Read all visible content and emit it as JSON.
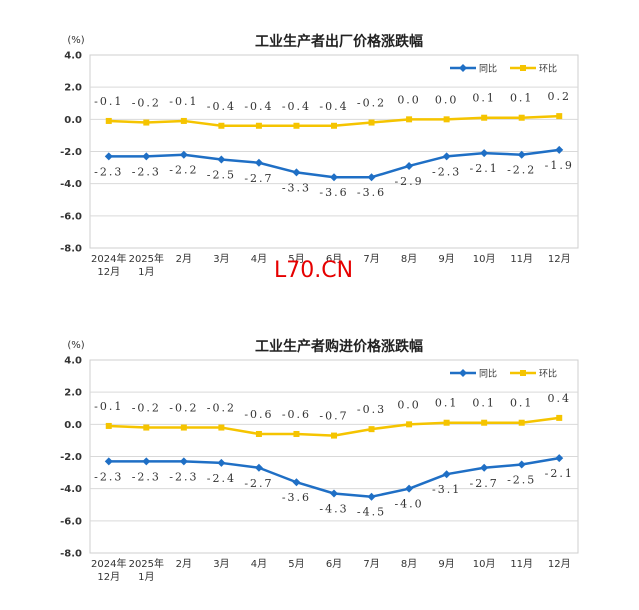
{
  "watermark": "L70.CN",
  "chart_data": [
    {
      "type": "line",
      "title": "工业生产者出厂价格涨跌幅",
      "unit": "(%)",
      "categories": [
        [
          "2024年",
          "12月"
        ],
        [
          "2025年",
          "1月"
        ],
        [
          "2月"
        ],
        [
          "3月"
        ],
        [
          "4月"
        ],
        [
          "5月"
        ],
        [
          "6月"
        ],
        [
          "7月"
        ],
        [
          "8月"
        ],
        [
          "9月"
        ],
        [
          "10月"
        ],
        [
          "11月"
        ],
        [
          "12月"
        ]
      ],
      "ylim": [
        -8.0,
        4.0
      ],
      "yticks": [
        "4.0",
        "2.0",
        "0.0",
        "-2.0",
        "-4.0",
        "-6.0",
        "-8.0"
      ],
      "grid": true,
      "legend": "top-right",
      "series": [
        {
          "name": "同比",
          "color": "#1f6fc5",
          "marker": "diamond",
          "values": [
            -2.3,
            -2.3,
            -2.2,
            -2.5,
            -2.7,
            -3.3,
            -3.6,
            -3.6,
            -2.9,
            -2.3,
            -2.1,
            -2.2,
            -1.9
          ],
          "labels": [
            "-2.3",
            "-2.3",
            "-2.2",
            "-2.5",
            "-2.7",
            "-3.3",
            "-3.6",
            "-3.6",
            "-2.9",
            "-2.3",
            "-2.1",
            "-2.2",
            "-1.9"
          ]
        },
        {
          "name": "环比",
          "color": "#f5c400",
          "marker": "square",
          "values": [
            -0.1,
            -0.2,
            -0.1,
            -0.4,
            -0.4,
            -0.4,
            -0.4,
            -0.2,
            0.0,
            0.0,
            0.1,
            0.1,
            0.2
          ],
          "labels": [
            "-0.1",
            "-0.2",
            "-0.1",
            "-0.4",
            "-0.4",
            "-0.4",
            "-0.4",
            "-0.2",
            "0.0",
            "0.0",
            "0.1",
            "0.1",
            "0.2"
          ]
        }
      ]
    },
    {
      "type": "line",
      "title": "工业生产者购进价格涨跌幅",
      "unit": "(%)",
      "categories": [
        [
          "2024年",
          "12月"
        ],
        [
          "2025年",
          "1月"
        ],
        [
          "2月"
        ],
        [
          "3月"
        ],
        [
          "4月"
        ],
        [
          "5月"
        ],
        [
          "6月"
        ],
        [
          "7月"
        ],
        [
          "8月"
        ],
        [
          "9月"
        ],
        [
          "10月"
        ],
        [
          "11月"
        ],
        [
          "12月"
        ]
      ],
      "ylim": [
        -8.0,
        4.0
      ],
      "yticks": [
        "4.0",
        "2.0",
        "0.0",
        "-2.0",
        "-4.0",
        "-6.0",
        "-8.0"
      ],
      "grid": true,
      "legend": "top-right",
      "series": [
        {
          "name": "同比",
          "color": "#1f6fc5",
          "marker": "diamond",
          "values": [
            -2.3,
            -2.3,
            -2.3,
            -2.4,
            -2.7,
            -3.6,
            -4.3,
            -4.5,
            -4.0,
            -3.1,
            -2.7,
            -2.5,
            -2.1
          ],
          "labels": [
            "-2.3",
            "-2.3",
            "-2.3",
            "-2.4",
            "-2.7",
            "-3.6",
            "-4.3",
            "-4.5",
            "-4.0",
            "-3.1",
            "-2.7",
            "-2.5",
            "-2.1"
          ]
        },
        {
          "name": "环比",
          "color": "#f5c400",
          "marker": "square",
          "values": [
            -0.1,
            -0.2,
            -0.2,
            -0.2,
            -0.6,
            -0.6,
            -0.7,
            -0.3,
            0.0,
            0.1,
            0.1,
            0.1,
            0.4
          ],
          "labels": [
            "-0.1",
            "-0.2",
            "-0.2",
            "-0.2",
            "-0.6",
            "-0.6",
            "-0.7",
            "-0.3",
            "0.0",
            "0.1",
            "0.1",
            "0.1",
            "0.4"
          ]
        }
      ]
    }
  ]
}
